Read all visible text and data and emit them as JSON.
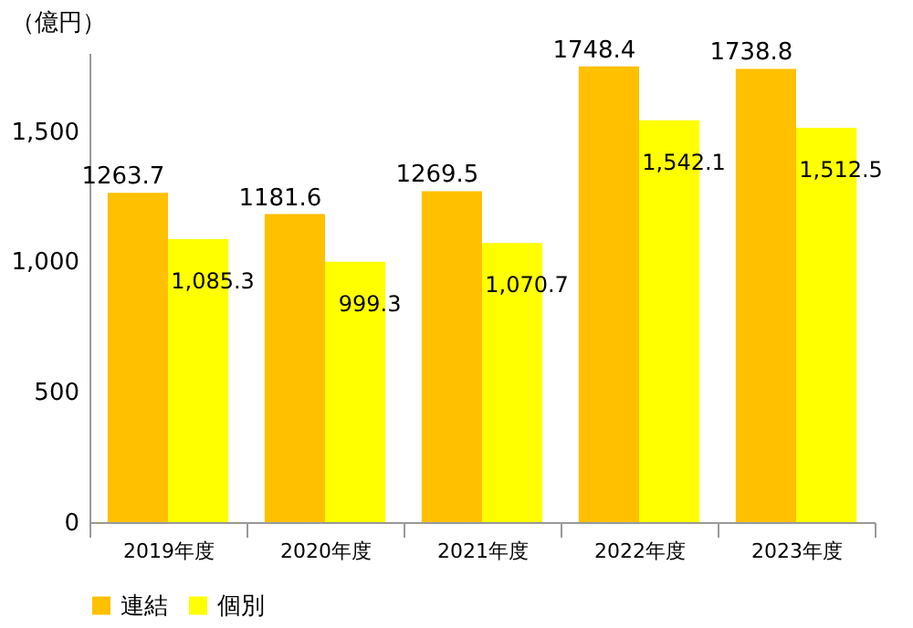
{
  "chart_data": {
    "type": "bar",
    "ylabel": "（億円）",
    "categories": [
      "2019年度",
      "2020年度",
      "2021年度",
      "2022年度",
      "2023年度"
    ],
    "series": [
      {
        "name": "連結",
        "color": "#ffc000",
        "values": [
          1263.7,
          1181.6,
          1269.5,
          1748.4,
          1738.8
        ],
        "value_labels": [
          "1263.7",
          "1181.6",
          "1269.5",
          "1748.4",
          "1738.8"
        ]
      },
      {
        "name": "個別",
        "color": "#ffff00",
        "values": [
          1085.3,
          999.3,
          1070.7,
          1542.1,
          1512.5
        ],
        "value_labels": [
          "1,085.3",
          "999.3",
          "1,070.7",
          "1,542.1",
          "1,512.5"
        ]
      }
    ],
    "ylim": [
      0,
      1800
    ],
    "yticks": [
      0,
      500,
      {
        "value": 1000,
        "label": "1,000"
      },
      {
        "value": 1500,
        "label": "1,500"
      }
    ],
    "grid": false,
    "legend": "bottom"
  }
}
